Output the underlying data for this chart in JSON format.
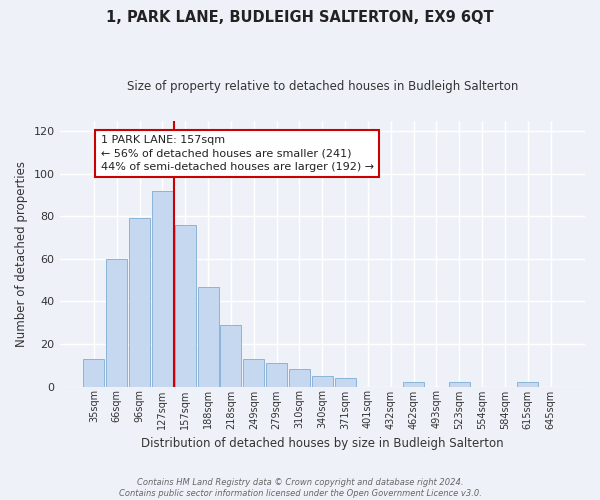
{
  "title": "1, PARK LANE, BUDLEIGH SALTERTON, EX9 6QT",
  "subtitle": "Size of property relative to detached houses in Budleigh Salterton",
  "xlabel": "Distribution of detached houses by size in Budleigh Salterton",
  "ylabel": "Number of detached properties",
  "bar_labels": [
    "35sqm",
    "66sqm",
    "96sqm",
    "127sqm",
    "157sqm",
    "188sqm",
    "218sqm",
    "249sqm",
    "279sqm",
    "310sqm",
    "340sqm",
    "371sqm",
    "401sqm",
    "432sqm",
    "462sqm",
    "493sqm",
    "523sqm",
    "554sqm",
    "584sqm",
    "615sqm",
    "645sqm"
  ],
  "bar_values": [
    13,
    60,
    79,
    92,
    76,
    47,
    29,
    13,
    11,
    8,
    5,
    4,
    0,
    0,
    2,
    0,
    2,
    0,
    0,
    2,
    0
  ],
  "bar_color": "#c5d8f0",
  "bar_edge_color": "#8ab4d8",
  "vline_color": "#cc0000",
  "vline_index": 3.5,
  "annotation_text": "1 PARK LANE: 157sqm\n← 56% of detached houses are smaller (241)\n44% of semi-detached houses are larger (192) →",
  "annotation_box_color": "#ffffff",
  "annotation_box_edge": "#cc0000",
  "ylim": [
    0,
    125
  ],
  "yticks": [
    0,
    20,
    40,
    60,
    80,
    100,
    120
  ],
  "footnote": "Contains HM Land Registry data © Crown copyright and database right 2024.\nContains public sector information licensed under the Open Government Licence v3.0.",
  "background_color": "#eef2f8",
  "grid_color": "#ffffff"
}
